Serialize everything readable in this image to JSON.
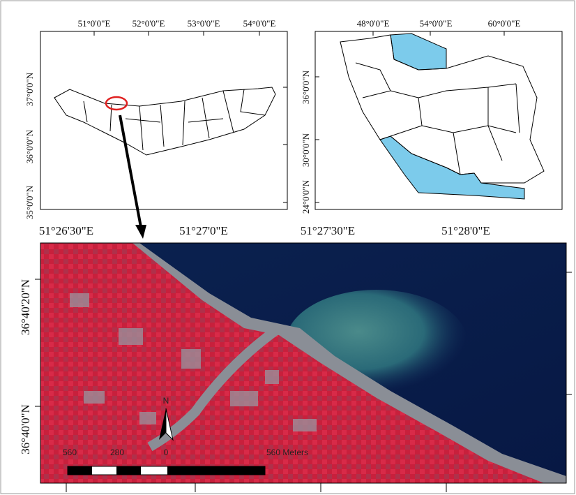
{
  "inset_province": {
    "x_labels": [
      "51°0'0\"E",
      "52°0'0\"E",
      "53°0'0\"E",
      "54°0'0\"E"
    ],
    "y_labels": [
      "37°0'0\"N",
      "36°0'0\"N",
      "35°0'0\"N"
    ]
  },
  "inset_country": {
    "x_labels": [
      "48°0'0\"E",
      "54°0'0\"E",
      "60°0'0\"E"
    ],
    "y_labels": [
      "36°0'0\"N",
      "30°0'0\"N",
      "24°0'0\"N"
    ]
  },
  "main_image": {
    "x_labels": [
      "51°26'30\"E",
      "51°27'0\"E",
      "51°27'30\"E",
      "51°28'0\"E"
    ],
    "y_labels": [
      "36°40'20\"N",
      "36°40'0\"N"
    ],
    "north_label": "N",
    "scale_labels": [
      "560",
      "280",
      "0",
      "560 Meters"
    ]
  }
}
